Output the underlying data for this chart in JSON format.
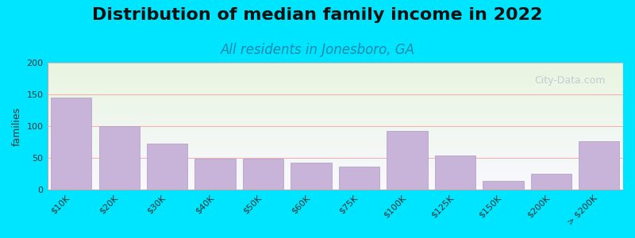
{
  "title": "Distribution of median family income in 2022",
  "subtitle": "All residents in Jonesboro, GA",
  "categories": [
    "$10K",
    "$20K",
    "$30K",
    "$40K",
    "$50K",
    "$60K",
    "$75K",
    "$100K",
    "$125K",
    "$150K",
    "$200K",
    "> $200K"
  ],
  "values": [
    145,
    100,
    73,
    49,
    49,
    42,
    36,
    93,
    54,
    14,
    25,
    76
  ],
  "bar_color": "#c8b4d8",
  "bar_edge_color": "#b09ac0",
  "ylim": [
    0,
    200
  ],
  "yticks": [
    0,
    50,
    100,
    150,
    200
  ],
  "ylabel": "families",
  "title_fontsize": 16,
  "subtitle_fontsize": 12,
  "subtitle_color": "#2288aa",
  "background_outer": "#00e5ff",
  "background_chart_top": "#e8f5e0",
  "background_chart_bottom": "#f8f8ff",
  "watermark_text": "City-Data.com",
  "watermark_color": "#bbbbcc",
  "grid_color": "#ffaaaa"
}
